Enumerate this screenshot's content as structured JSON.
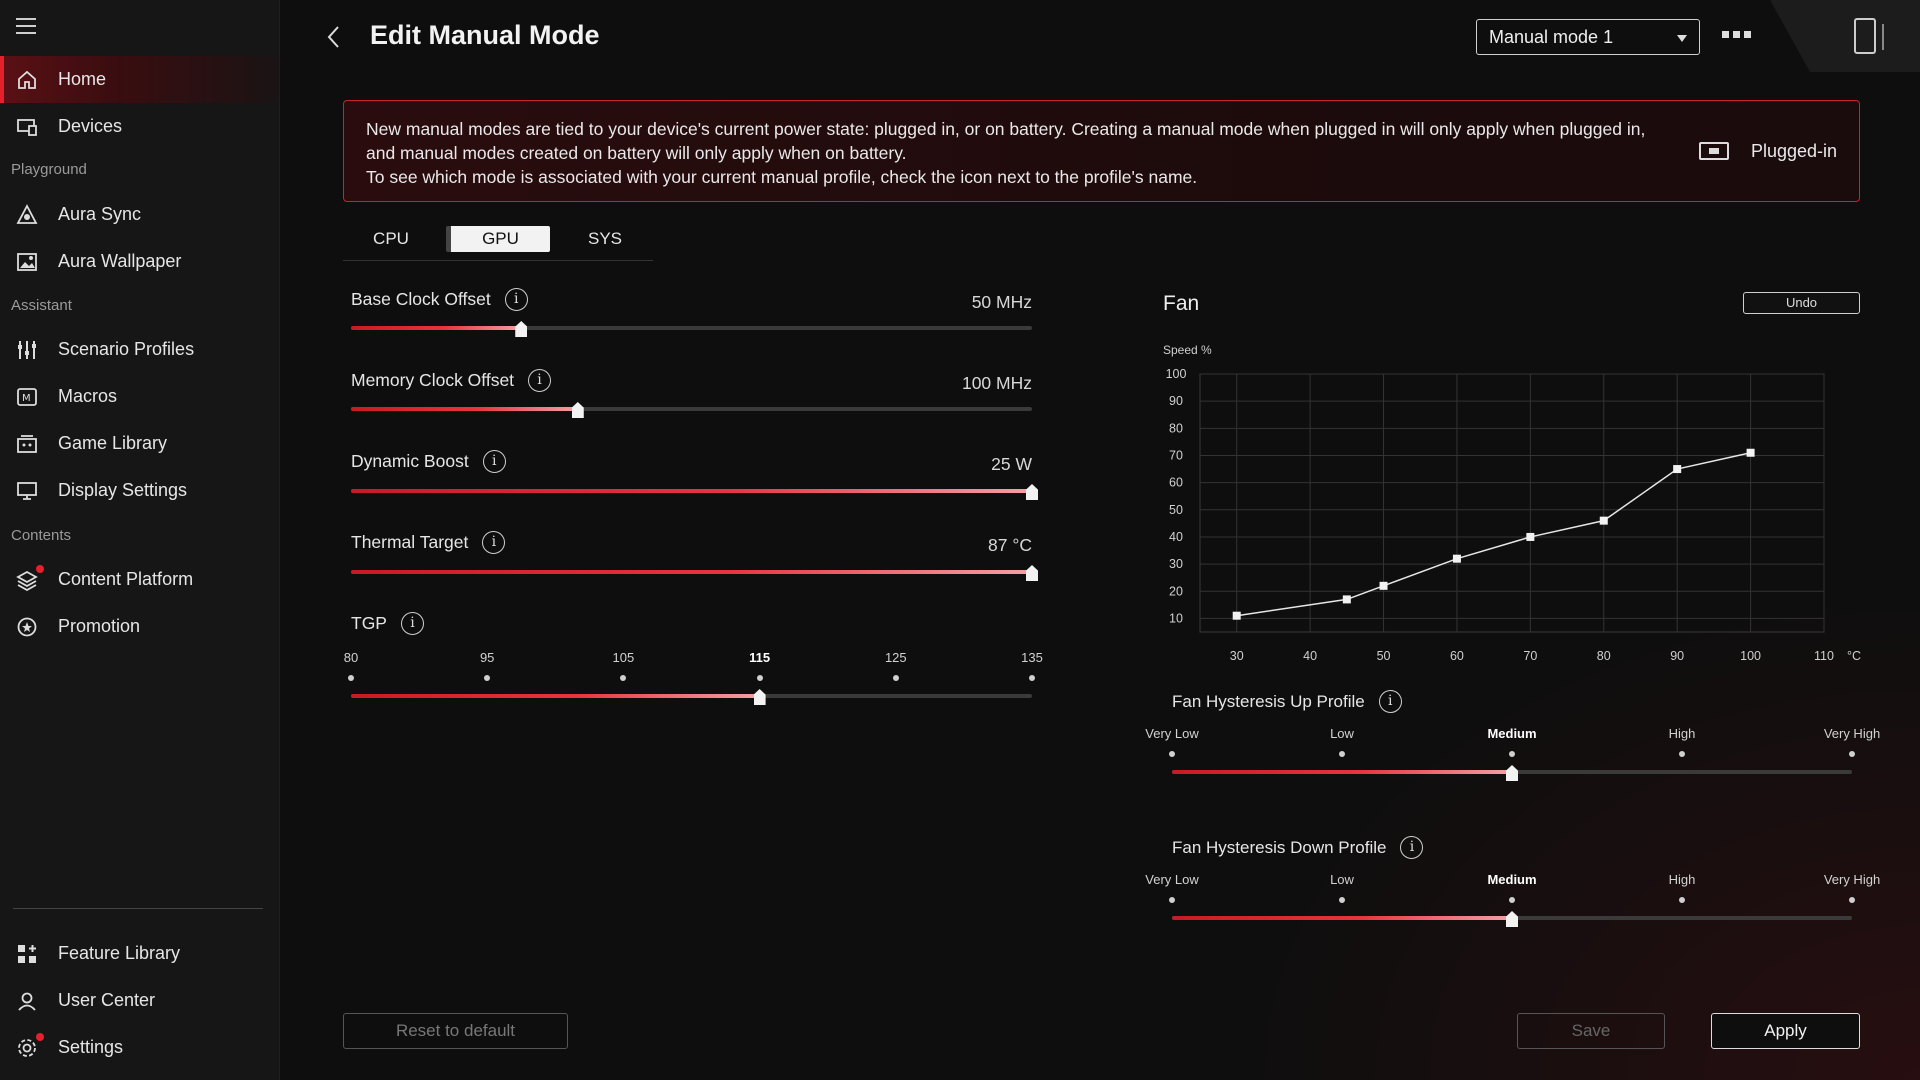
{
  "sidebar": {
    "items": [
      {
        "label": "Home",
        "icon": "home-icon",
        "active": true
      },
      {
        "label": "Devices",
        "icon": "devices-icon"
      },
      {
        "label": "Aura Sync",
        "icon": "aura-sync-icon"
      },
      {
        "label": "Aura Wallpaper",
        "icon": "wallpaper-icon"
      },
      {
        "label": "Scenario Profiles",
        "icon": "scenario-profiles-icon"
      },
      {
        "label": "Macros",
        "icon": "macros-icon"
      },
      {
        "label": "Game Library",
        "icon": "game-library-icon"
      },
      {
        "label": "Display Settings",
        "icon": "display-settings-icon"
      },
      {
        "label": "Content Platform",
        "icon": "content-platform-icon",
        "badge": true
      },
      {
        "label": "Promotion",
        "icon": "promotion-icon"
      },
      {
        "label": "Feature Library",
        "icon": "feature-library-icon"
      },
      {
        "label": "User Center",
        "icon": "user-center-icon"
      },
      {
        "label": "Settings",
        "icon": "settings-icon",
        "badge": true
      }
    ],
    "sections": [
      "Playground",
      "Assistant",
      "Contents"
    ]
  },
  "header": {
    "title": "Edit Manual Mode",
    "mode_selected": "Manual mode 1"
  },
  "notice": {
    "line1": "New manual modes are tied to your device's current power state: plugged in, or on battery. Creating a manual mode when plugged in will only apply when plugged in, and manual modes created on battery will only apply when on battery.",
    "line2": "To see which mode is associated with your current manual profile, check the icon next to the profile's name.",
    "power_state": "Plugged-in"
  },
  "tabs": [
    {
      "label": "CPU"
    },
    {
      "label": "GPU",
      "active": true
    },
    {
      "label": "SYS"
    }
  ],
  "gpu": {
    "base_clock": {
      "label": "Base Clock Offset",
      "value": "50 MHz",
      "fraction": 0.25
    },
    "memory_clock": {
      "label": "Memory Clock Offset",
      "value": "100 MHz",
      "fraction": 0.333
    },
    "dynamic_boost": {
      "label": "Dynamic Boost",
      "value": "25 W",
      "fraction": 1.0
    },
    "thermal_target": {
      "label": "Thermal Target",
      "value": "87 °C",
      "fraction": 1.0
    },
    "tgp": {
      "label": "TGP",
      "ticks": [
        "80",
        "95",
        "105",
        "115",
        "125",
        "135"
      ],
      "selected_index": 3
    }
  },
  "fan": {
    "title": "Fan",
    "undo_label": "Undo",
    "speed_label": "Speed %",
    "temp_unit": "°C",
    "hysteresis_up": {
      "label": "Fan Hysteresis Up Profile",
      "options": [
        "Very Low",
        "Low",
        "Medium",
        "High",
        "Very High"
      ],
      "selected_index": 2
    },
    "hysteresis_down": {
      "label": "Fan Hysteresis Down Profile",
      "options": [
        "Very Low",
        "Low",
        "Medium",
        "High",
        "Very High"
      ],
      "selected_index": 2
    }
  },
  "chart_data": {
    "type": "line",
    "xlabel": "°C",
    "ylabel": "Speed %",
    "xlim": [
      25,
      110
    ],
    "ylim": [
      5,
      100
    ],
    "x_ticks": [
      30,
      40,
      50,
      60,
      70,
      80,
      90,
      100,
      110
    ],
    "y_ticks": [
      10,
      20,
      30,
      40,
      50,
      60,
      70,
      80,
      90,
      100
    ],
    "grid": true,
    "series": [
      {
        "x": [
          30,
          45,
          50,
          60,
          70,
          80,
          90,
          100
        ],
        "y": [
          11,
          17,
          22,
          32,
          40,
          46,
          65,
          71
        ]
      }
    ]
  },
  "footer": {
    "reset_label": "Reset to default",
    "save_label": "Save",
    "apply_label": "Apply"
  },
  "colors": {
    "accent": "#e5202c",
    "background": "#0e0e0e",
    "sidebar": "#161616"
  }
}
